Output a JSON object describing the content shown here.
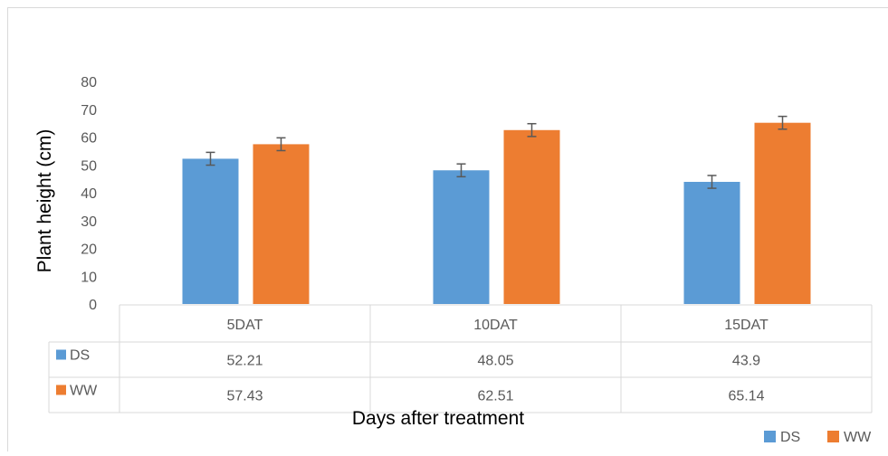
{
  "chart_data": {
    "type": "bar",
    "title": "",
    "xlabel": "Days after treatment",
    "ylabel": "Plant height (cm)",
    "ylim": [
      0,
      80
    ],
    "yticks": [
      0,
      10,
      20,
      30,
      40,
      50,
      60,
      70,
      80
    ],
    "grid": false,
    "legend_position": "bottom-right",
    "categories": [
      "5DAT",
      "10DAT",
      "15DAT"
    ],
    "series": [
      {
        "name": "DS",
        "color": "#5b9bd5",
        "values": [
          52.21,
          48.05,
          43.9
        ],
        "error": [
          2.3,
          2.3,
          2.3
        ],
        "labels": [
          "52.21",
          "48.05",
          "43.9"
        ]
      },
      {
        "name": "WW",
        "color": "#ed7d31",
        "values": [
          57.43,
          62.51,
          65.14
        ],
        "error": [
          2.3,
          2.3,
          2.3
        ],
        "labels": [
          "57.43",
          "62.51",
          "65.14"
        ]
      }
    ],
    "data_table": true
  }
}
